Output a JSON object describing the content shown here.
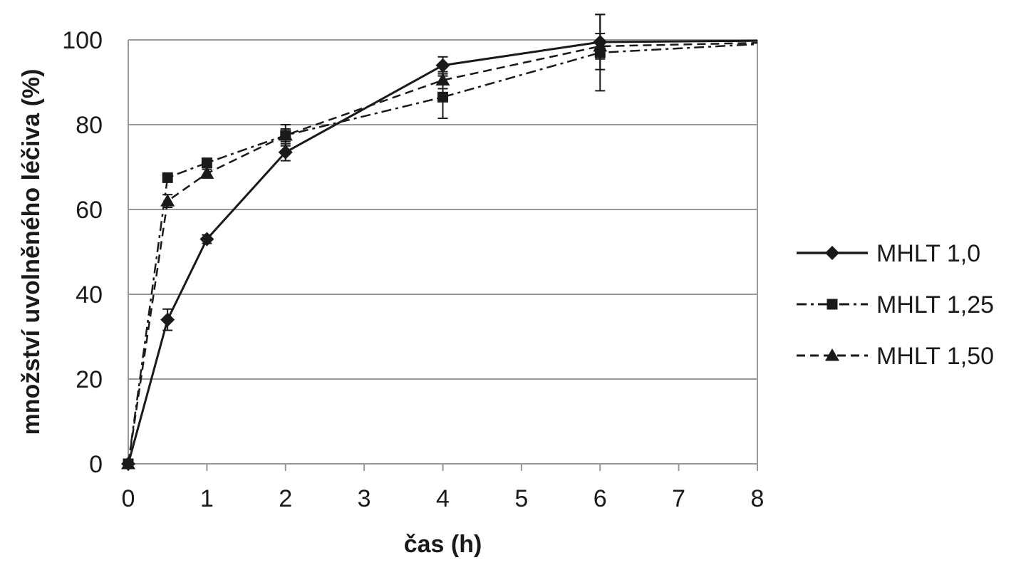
{
  "chart_data": {
    "type": "line",
    "title": "",
    "xlabel": "čas (h)",
    "ylabel": "množství uvolněného léčiva (%)",
    "xlim": [
      0,
      8
    ],
    "ylim": [
      0,
      100
    ],
    "x_ticks": [
      "0",
      "1",
      "2",
      "3",
      "4",
      "5",
      "6",
      "7",
      "8"
    ],
    "y_ticks": [
      "0",
      "20",
      "40",
      "60",
      "80",
      "100"
    ],
    "grid": "horizontal",
    "legend_position": "right",
    "series": [
      {
        "name": "MHLT 1,0",
        "line_style": "solid",
        "marker": "diamond",
        "x": [
          0,
          0.5,
          1,
          2,
          4,
          6,
          8
        ],
        "y": [
          0,
          34,
          53,
          73.5,
          94,
          99.5,
          99.8
        ],
        "err": [
          0,
          2.5,
          1,
          2,
          2,
          6.5,
          0
        ]
      },
      {
        "name": "MHLT 1,25",
        "line_style": "dash-dot",
        "marker": "square",
        "x": [
          0,
          0.5,
          1,
          2,
          4,
          6,
          8
        ],
        "y": [
          0,
          67.5,
          71,
          77.5,
          86.5,
          97,
          99
        ],
        "err": [
          0,
          1,
          1,
          2.5,
          5,
          9,
          0
        ]
      },
      {
        "name": "MHLT 1,50",
        "line_style": "dashed",
        "marker": "triangle",
        "x": [
          0,
          0.5,
          1,
          2,
          4,
          6,
          8
        ],
        "y": [
          0,
          62,
          68.5,
          77.5,
          90.5,
          98.5,
          99.3
        ],
        "err": [
          0,
          1.5,
          1,
          1.5,
          2,
          3,
          0
        ]
      }
    ]
  }
}
